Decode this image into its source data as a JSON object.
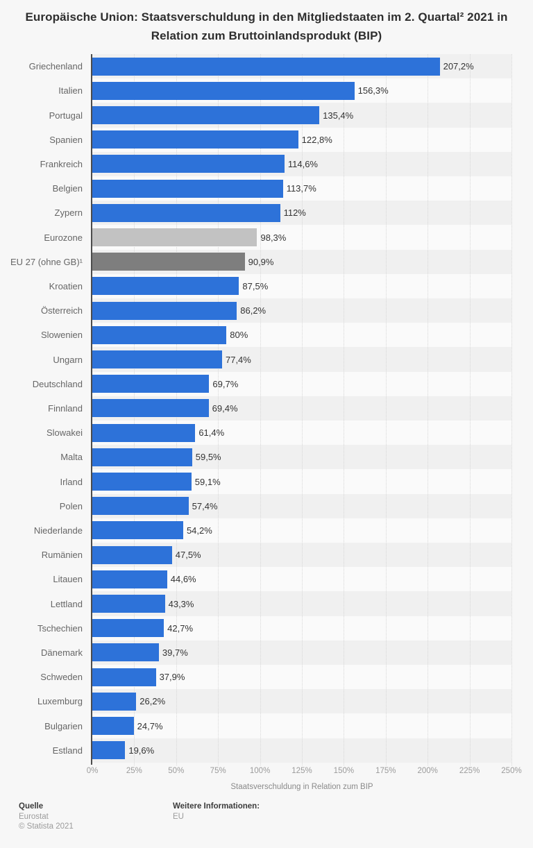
{
  "title": "Europäische Union: Staatsverschuldung in den Mitgliedstaaten im 2. Quartal² 2021 in Relation zum Bruttoinlandsprodukt (BIP)",
  "chart_data": {
    "type": "bar",
    "orientation": "horizontal",
    "title": "Europäische Union: Staatsverschuldung in den Mitgliedstaaten im 2. Quartal² 2021 in Relation zum Bruttoinlandsprodukt (BIP)",
    "xlabel": "Staatsverschuldung in Relation zum BIP",
    "ylabel": "",
    "xlim": [
      0,
      250
    ],
    "xticks": [
      "0%",
      "25%",
      "50%",
      "75%",
      "100%",
      "125%",
      "150%",
      "175%",
      "200%",
      "225%",
      "250%"
    ],
    "grid": "vertical-dotted",
    "legend": "none",
    "palette": {
      "blue": "#2d72d9",
      "lightgray": "#c2c2c2",
      "darkgray": "#7e7e7e"
    },
    "rows": [
      {
        "label": "Griechenland",
        "value": 207.2,
        "display": "207,2%",
        "color": "blue"
      },
      {
        "label": "Italien",
        "value": 156.3,
        "display": "156,3%",
        "color": "blue"
      },
      {
        "label": "Portugal",
        "value": 135.4,
        "display": "135,4%",
        "color": "blue"
      },
      {
        "label": "Spanien",
        "value": 122.8,
        "display": "122,8%",
        "color": "blue"
      },
      {
        "label": "Frankreich",
        "value": 114.6,
        "display": "114,6%",
        "color": "blue"
      },
      {
        "label": "Belgien",
        "value": 113.7,
        "display": "113,7%",
        "color": "blue"
      },
      {
        "label": "Zypern",
        "value": 112,
        "display": "112%",
        "color": "blue"
      },
      {
        "label": "Eurozone",
        "value": 98.3,
        "display": "98,3%",
        "color": "lightgray"
      },
      {
        "label": "EU 27 (ohne GB)¹",
        "value": 90.9,
        "display": "90,9%",
        "color": "darkgray"
      },
      {
        "label": "Kroatien",
        "value": 87.5,
        "display": "87,5%",
        "color": "blue"
      },
      {
        "label": "Österreich",
        "value": 86.2,
        "display": "86,2%",
        "color": "blue"
      },
      {
        "label": "Slowenien",
        "value": 80,
        "display": "80%",
        "color": "blue"
      },
      {
        "label": "Ungarn",
        "value": 77.4,
        "display": "77,4%",
        "color": "blue"
      },
      {
        "label": "Deutschland",
        "value": 69.7,
        "display": "69,7%",
        "color": "blue"
      },
      {
        "label": "Finnland",
        "value": 69.4,
        "display": "69,4%",
        "color": "blue"
      },
      {
        "label": "Slowakei",
        "value": 61.4,
        "display": "61,4%",
        "color": "blue"
      },
      {
        "label": "Malta",
        "value": 59.5,
        "display": "59,5%",
        "color": "blue"
      },
      {
        "label": "Irland",
        "value": 59.1,
        "display": "59,1%",
        "color": "blue"
      },
      {
        "label": "Polen",
        "value": 57.4,
        "display": "57,4%",
        "color": "blue"
      },
      {
        "label": "Niederlande",
        "value": 54.2,
        "display": "54,2%",
        "color": "blue"
      },
      {
        "label": "Rumänien",
        "value": 47.5,
        "display": "47,5%",
        "color": "blue"
      },
      {
        "label": "Litauen",
        "value": 44.6,
        "display": "44,6%",
        "color": "blue"
      },
      {
        "label": "Lettland",
        "value": 43.3,
        "display": "43,3%",
        "color": "blue"
      },
      {
        "label": "Tschechien",
        "value": 42.7,
        "display": "42,7%",
        "color": "blue"
      },
      {
        "label": "Dänemark",
        "value": 39.7,
        "display": "39,7%",
        "color": "blue"
      },
      {
        "label": "Schweden",
        "value": 37.9,
        "display": "37,9%",
        "color": "blue"
      },
      {
        "label": "Luxemburg",
        "value": 26.2,
        "display": "26,2%",
        "color": "blue"
      },
      {
        "label": "Bulgarien",
        "value": 24.7,
        "display": "24,7%",
        "color": "blue"
      },
      {
        "label": "Estland",
        "value": 19.6,
        "display": "19,6%",
        "color": "blue"
      }
    ]
  },
  "footer": {
    "source_heading": "Quelle",
    "source": "Eurostat",
    "copyright": "© Statista 2021",
    "info_heading": "Weitere Informationen:",
    "info": "EU"
  }
}
